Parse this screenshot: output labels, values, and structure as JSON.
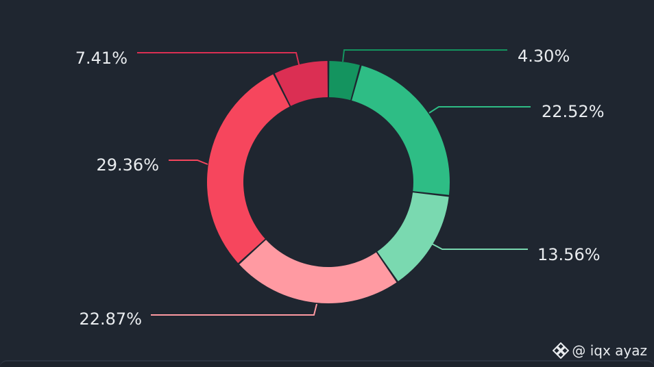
{
  "chart_data": {
    "type": "pie",
    "donut": true,
    "title": "",
    "legend": "none",
    "slices": [
      {
        "value": 4.3,
        "label": "4.30%",
        "color": "#14945f"
      },
      {
        "value": 22.52,
        "label": "22.52%",
        "color": "#2ebd85"
      },
      {
        "value": 13.56,
        "label": "13.56%",
        "color": "#7ad9b0"
      },
      {
        "value": 22.87,
        "label": "22.87%",
        "color": "#ff9aa2"
      },
      {
        "value": 29.36,
        "label": "29.36%",
        "color": "#f6465d"
      },
      {
        "value": 7.41,
        "label": "7.41%",
        "color": "#db2f53"
      }
    ]
  },
  "watermark": {
    "handle": "@ iqx ayaz",
    "icon": "binance-logo-icon"
  },
  "colors": {
    "background": "#1f2630",
    "label_text": "#e9ecef"
  }
}
